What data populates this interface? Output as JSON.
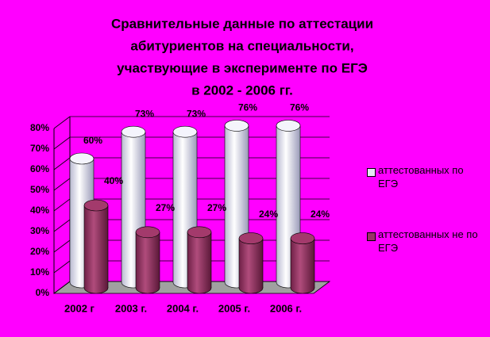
{
  "chart_data": {
    "type": "bar",
    "title": [
      "Сравнительные данные по аттестации",
      "абитуриентов  на специальности,",
      "участвующие в эксперименте по ЕГЭ",
      "в 2002 - 2006 гг."
    ],
    "categories": [
      "2002 г",
      "2003 г.",
      "2004 г.",
      "2005 г.",
      "2006 г."
    ],
    "series": [
      {
        "name": "аттестованных по ЕГЭ",
        "color": "#e6e6f5",
        "values": [
          60,
          73,
          73,
          76,
          76
        ],
        "value_labels": [
          "60%",
          "73%",
          "73%",
          "76%",
          "76%"
        ]
      },
      {
        "name": "аттестованных не по ЕГЭ",
        "color": "#993366",
        "values": [
          40,
          27,
          27,
          24,
          24
        ],
        "value_labels": [
          "40%",
          "27%",
          "27%",
          "24%",
          "24%"
        ]
      }
    ],
    "ylim": [
      0,
      80
    ],
    "yticks": [
      {
        "value": 0,
        "label": "0%"
      },
      {
        "value": 10,
        "label": "10%"
      },
      {
        "value": 20,
        "label": "20%"
      },
      {
        "value": 30,
        "label": "30%"
      },
      {
        "value": 40,
        "label": "40%"
      },
      {
        "value": 50,
        "label": "50%"
      },
      {
        "value": 60,
        "label": "60%"
      },
      {
        "value": 70,
        "label": "70%"
      },
      {
        "value": 80,
        "label": "80%"
      }
    ],
    "grid": true
  }
}
